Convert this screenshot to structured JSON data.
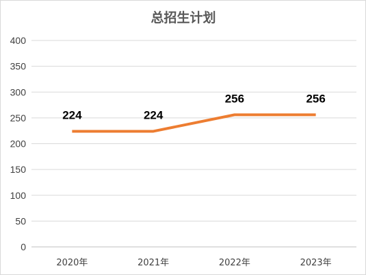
{
  "chart_data": {
    "type": "line",
    "title": "总招生计划",
    "categories": [
      "2020年",
      "2021年",
      "2022年",
      "2023年"
    ],
    "series": [
      {
        "values": [
          224,
          224,
          256,
          256
        ],
        "color": "#ed7d31"
      }
    ],
    "data_labels": [
      "224",
      "224",
      "256",
      "256"
    ],
    "y_ticks": [
      "0",
      "50",
      "100",
      "150",
      "200",
      "250",
      "300",
      "350",
      "400"
    ],
    "ylim": [
      0,
      400
    ],
    "grid": true,
    "legend": "none"
  }
}
